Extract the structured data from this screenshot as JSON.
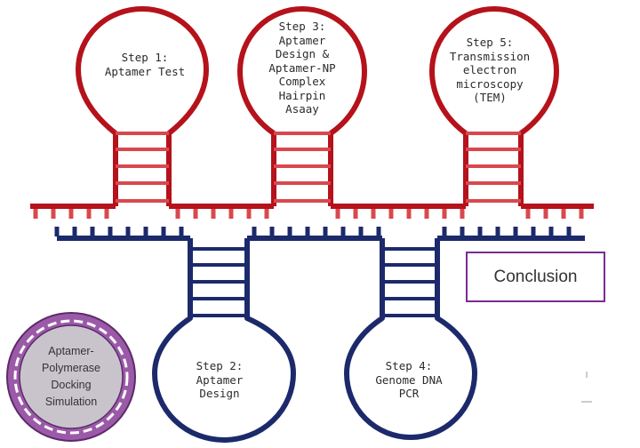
{
  "colors": {
    "red": "#b5121b",
    "red_rung": "#d9484e",
    "navy": "#1c2a6b",
    "purple": "#7b2b94",
    "sim_fill": "#c9c4cc",
    "sim_ring": "#9b5aa8"
  },
  "steps": [
    {
      "id": "step-1",
      "label": "Step 1:\nAptamer Test"
    },
    {
      "id": "step-3",
      "label": "Step 3:\nAptamer\nDesign &\nAptamer-NP\nComplex\nHairpin\nAsaay"
    },
    {
      "id": "step-5",
      "label": "Step 5:\nTransmission\nelectron\nmicroscopy\n(TEM)"
    },
    {
      "id": "step-2",
      "label": "Step 2:\nAptamer\nDesign"
    },
    {
      "id": "step-4",
      "label": "Step 4:\nGenome DNA\nPCR"
    }
  ],
  "conclusion": {
    "label": "Conclusion"
  },
  "simulation": {
    "label": "Aptamer-\nPolymerase\nDocking\nSimulation"
  }
}
